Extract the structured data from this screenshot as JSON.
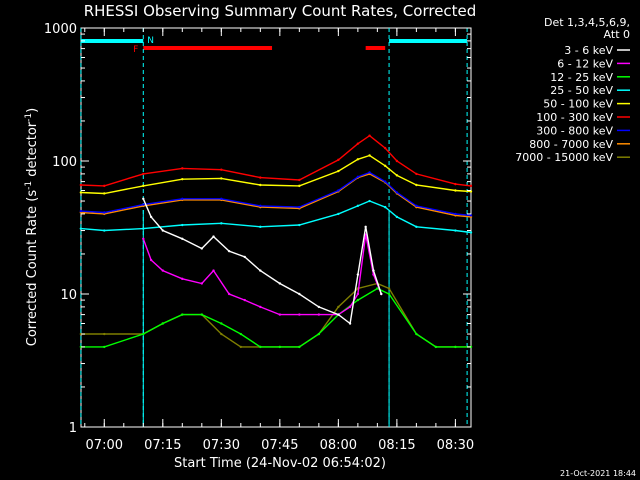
{
  "chart_data": {
    "type": "line",
    "title": "RHESSI Observing Summary Count Rates, Corrected",
    "xlabel": "Start Time (24-Nov-02 06:54:02)",
    "ylabel_main": "Corrected Count Rate (s",
    "ylabel_sup1": "-1",
    "ylabel_mid": " detector",
    "ylabel_sup2": "-1",
    "ylabel_end": ")",
    "y_scale": "log",
    "ylim": [
      1,
      1000
    ],
    "xlim": [
      "06:54:02",
      "08:34:00"
    ],
    "x_ticks": [
      "07:00",
      "07:15",
      "07:30",
      "07:45",
      "08:00",
      "08:15",
      "08:30"
    ],
    "y_ticks": [
      "1",
      "10",
      "100",
      "1000"
    ],
    "legend_header_1": "Det 1,3,4,5,6,9,",
    "legend_header_2": "Att 0",
    "legend_position": "right",
    "series": [
      {
        "name": "3 - 6 keV",
        "color": "#ffffff",
        "x": [
          "07:10",
          "07:12",
          "07:15",
          "07:20",
          "07:25",
          "07:28",
          "07:32",
          "07:36",
          "07:40",
          "07:45",
          "07:50",
          "07:55",
          "08:00",
          "08:03",
          "08:05",
          "08:07",
          "08:09",
          "08:11"
        ],
        "values": [
          52,
          38,
          30,
          26,
          22,
          27,
          21,
          19,
          15,
          12,
          10,
          8,
          7,
          6,
          14,
          32,
          15,
          10
        ]
      },
      {
        "name": "6 - 12 keV",
        "color": "#ff00ff",
        "x": [
          "07:10",
          "07:12",
          "07:15",
          "07:20",
          "07:25",
          "07:28",
          "07:32",
          "07:36",
          "07:40",
          "07:45",
          "07:50",
          "07:55",
          "08:00",
          "08:03",
          "08:05",
          "08:07",
          "08:09",
          "08:11"
        ],
        "values": [
          26,
          18,
          15,
          13,
          12,
          15,
          10,
          9,
          8,
          7,
          7,
          7,
          7,
          8,
          10,
          28,
          14,
          10
        ]
      },
      {
        "name": "12 - 25 keV",
        "color": "#00ff00",
        "x": [
          "06:54",
          "07:00",
          "07:10",
          "07:15",
          "07:20",
          "07:25",
          "07:30",
          "07:35",
          "07:40",
          "07:45",
          "07:50",
          "07:55",
          "08:00",
          "08:05",
          "08:10",
          "08:13",
          "08:20",
          "08:25",
          "08:30",
          "08:34"
        ],
        "values": [
          4,
          4,
          5,
          6,
          7,
          7,
          6,
          5,
          4,
          4,
          4,
          5,
          7,
          9,
          11,
          10,
          5,
          4,
          4,
          4
        ]
      },
      {
        "name": "25 - 50 keV",
        "color": "#00ffff",
        "x": [
          "06:54",
          "07:00",
          "07:10",
          "07:20",
          "07:30",
          "07:40",
          "07:50",
          "08:00",
          "08:05",
          "08:08",
          "08:12",
          "08:15",
          "08:20",
          "08:30",
          "08:34"
        ],
        "values": [
          31,
          30,
          31,
          33,
          34,
          32,
          33,
          40,
          46,
          50,
          45,
          38,
          32,
          30,
          29
        ]
      },
      {
        "name": "50 - 100 keV",
        "color": "#ffff00",
        "x": [
          "06:54",
          "07:00",
          "07:10",
          "07:20",
          "07:30",
          "07:40",
          "07:50",
          "08:00",
          "08:05",
          "08:08",
          "08:12",
          "08:15",
          "08:20",
          "08:30",
          "08:34"
        ],
        "values": [
          58,
          57,
          65,
          73,
          74,
          66,
          65,
          84,
          103,
          110,
          92,
          78,
          66,
          60,
          59
        ]
      },
      {
        "name": "100 - 300 keV",
        "color": "#ff0000",
        "x": [
          "06:54",
          "07:00",
          "07:10",
          "07:20",
          "07:30",
          "07:40",
          "07:50",
          "08:00",
          "08:05",
          "08:08",
          "08:12",
          "08:15",
          "08:20",
          "08:30",
          "08:34"
        ],
        "values": [
          66,
          65,
          80,
          88,
          86,
          75,
          72,
          102,
          135,
          155,
          125,
          100,
          80,
          67,
          65
        ]
      },
      {
        "name": "300 - 800 keV",
        "color": "#0000ff",
        "x": [
          "06:54",
          "07:00",
          "07:10",
          "07:20",
          "07:30",
          "07:40",
          "07:50",
          "08:00",
          "08:05",
          "08:08",
          "08:12",
          "08:15",
          "08:20",
          "08:30",
          "08:34"
        ],
        "values": [
          42,
          41,
          47,
          52,
          52,
          46,
          45,
          60,
          76,
          82,
          70,
          58,
          46,
          40,
          39
        ]
      },
      {
        "name": "800 - 7000 keV",
        "color": "#ff8c00",
        "x": [
          "06:54",
          "07:00",
          "07:10",
          "07:20",
          "07:30",
          "07:40",
          "07:50",
          "08:00",
          "08:05",
          "08:08",
          "08:12",
          "08:15",
          "08:20",
          "08:30",
          "08:34"
        ],
        "values": [
          41,
          40,
          46,
          51,
          51,
          45,
          44,
          59,
          75,
          80,
          69,
          57,
          45,
          39,
          38
        ]
      },
      {
        "name": "7000 - 15000 keV",
        "color": "#7f7f00",
        "x": [
          "06:54",
          "07:00",
          "07:10",
          "07:15",
          "07:20",
          "07:25",
          "07:30",
          "07:35",
          "07:40",
          "07:45",
          "07:50",
          "07:55",
          "08:00",
          "08:05",
          "08:10",
          "08:13",
          "08:20",
          "08:25",
          "08:30",
          "08:34"
        ],
        "values": [
          5,
          5,
          5,
          6,
          7,
          7,
          5,
          4,
          4,
          4,
          4,
          5,
          8,
          11,
          12,
          11,
          5,
          4,
          4,
          4
        ]
      }
    ],
    "annotations": {
      "flare_flag": "F",
      "night_flag": "N",
      "flag_color_cyan": "#00ffff",
      "flag_color_red": "#ff0000",
      "cyan_bars": [
        [
          "06:54",
          "07:10"
        ],
        [
          "08:13",
          "08:33"
        ]
      ],
      "red_bars": [
        [
          "07:10",
          "07:43"
        ],
        [
          "08:07",
          "08:12"
        ]
      ],
      "solid_vlines": [
        "07:10",
        "08:13"
      ],
      "dashed_vlines": [
        "06:54",
        "07:10",
        "08:13",
        "08:33"
      ]
    },
    "grid": false
  },
  "footer_timestamp": "21-Oct-2021 18:44"
}
